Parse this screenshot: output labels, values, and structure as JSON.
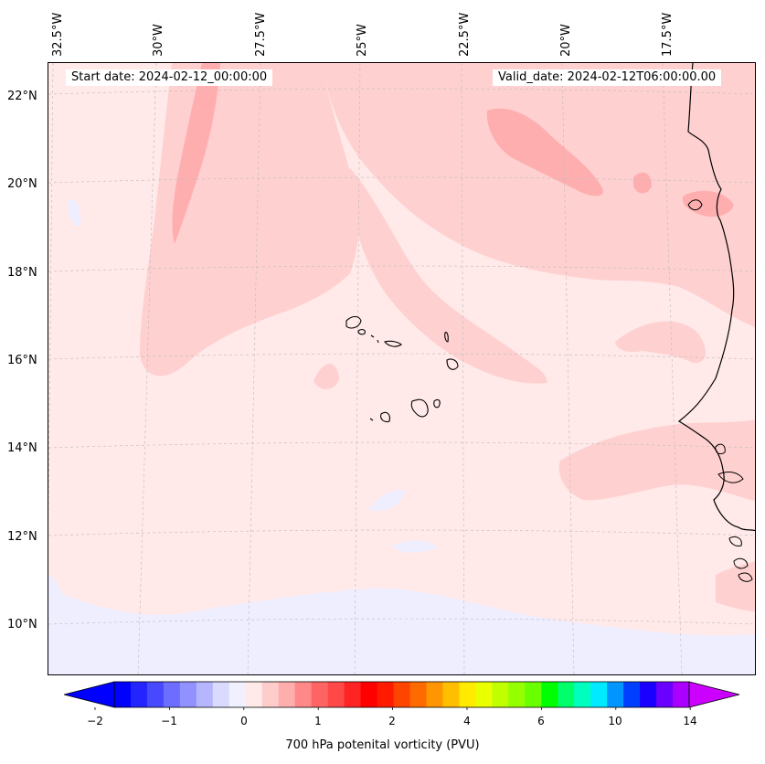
{
  "map": {
    "start_date": "Start date: 2024-02-12_00:00:00",
    "valid_date": "Valid_date: 2024-02-12T06:00:00.00",
    "longitude_labels": [
      "32.5°W",
      "30°W",
      "27.5°W",
      "25°W",
      "22.5°W",
      "20°W",
      "17.5°W"
    ],
    "latitude_labels": [
      "22°N",
      "20°N",
      "18°N",
      "16°N",
      "14°N",
      "12°N",
      "10°N"
    ],
    "background_color": "#ffe9e9",
    "field_colors": {
      "light_pink": "#ffd0d0",
      "pink": "#ffaeb0",
      "lavender": "#eeeeff"
    }
  },
  "colorbar": {
    "label": "700 hPa potenital vorticity (PVU)",
    "tick_labels": [
      "−2",
      "−1",
      "0",
      "1",
      "2",
      "4",
      "6",
      "10",
      "14"
    ],
    "colors": [
      "#0000ff",
      "#2424ff",
      "#4848ff",
      "#6d6dff",
      "#9191ff",
      "#b6b6ff",
      "#dadaff",
      "#f0f0ff",
      "#ffe9e9",
      "#ffcccc",
      "#ffaeae",
      "#ff8888",
      "#ff6464",
      "#ff4848",
      "#ff2424",
      "#ff0000",
      "#ff1a00",
      "#ff4400",
      "#ff6a00",
      "#ff9500",
      "#ffbf00",
      "#ffea00",
      "#eaff00",
      "#bfff00",
      "#95ff00",
      "#6aff00",
      "#00ff00",
      "#00ff6a",
      "#00ffbf",
      "#00eaff",
      "#0095ff",
      "#003fff",
      "#1a00ff",
      "#6a00ff",
      "#aa00ff"
    ],
    "under_color": "#0000ff",
    "over_color": "#cc00ff"
  }
}
